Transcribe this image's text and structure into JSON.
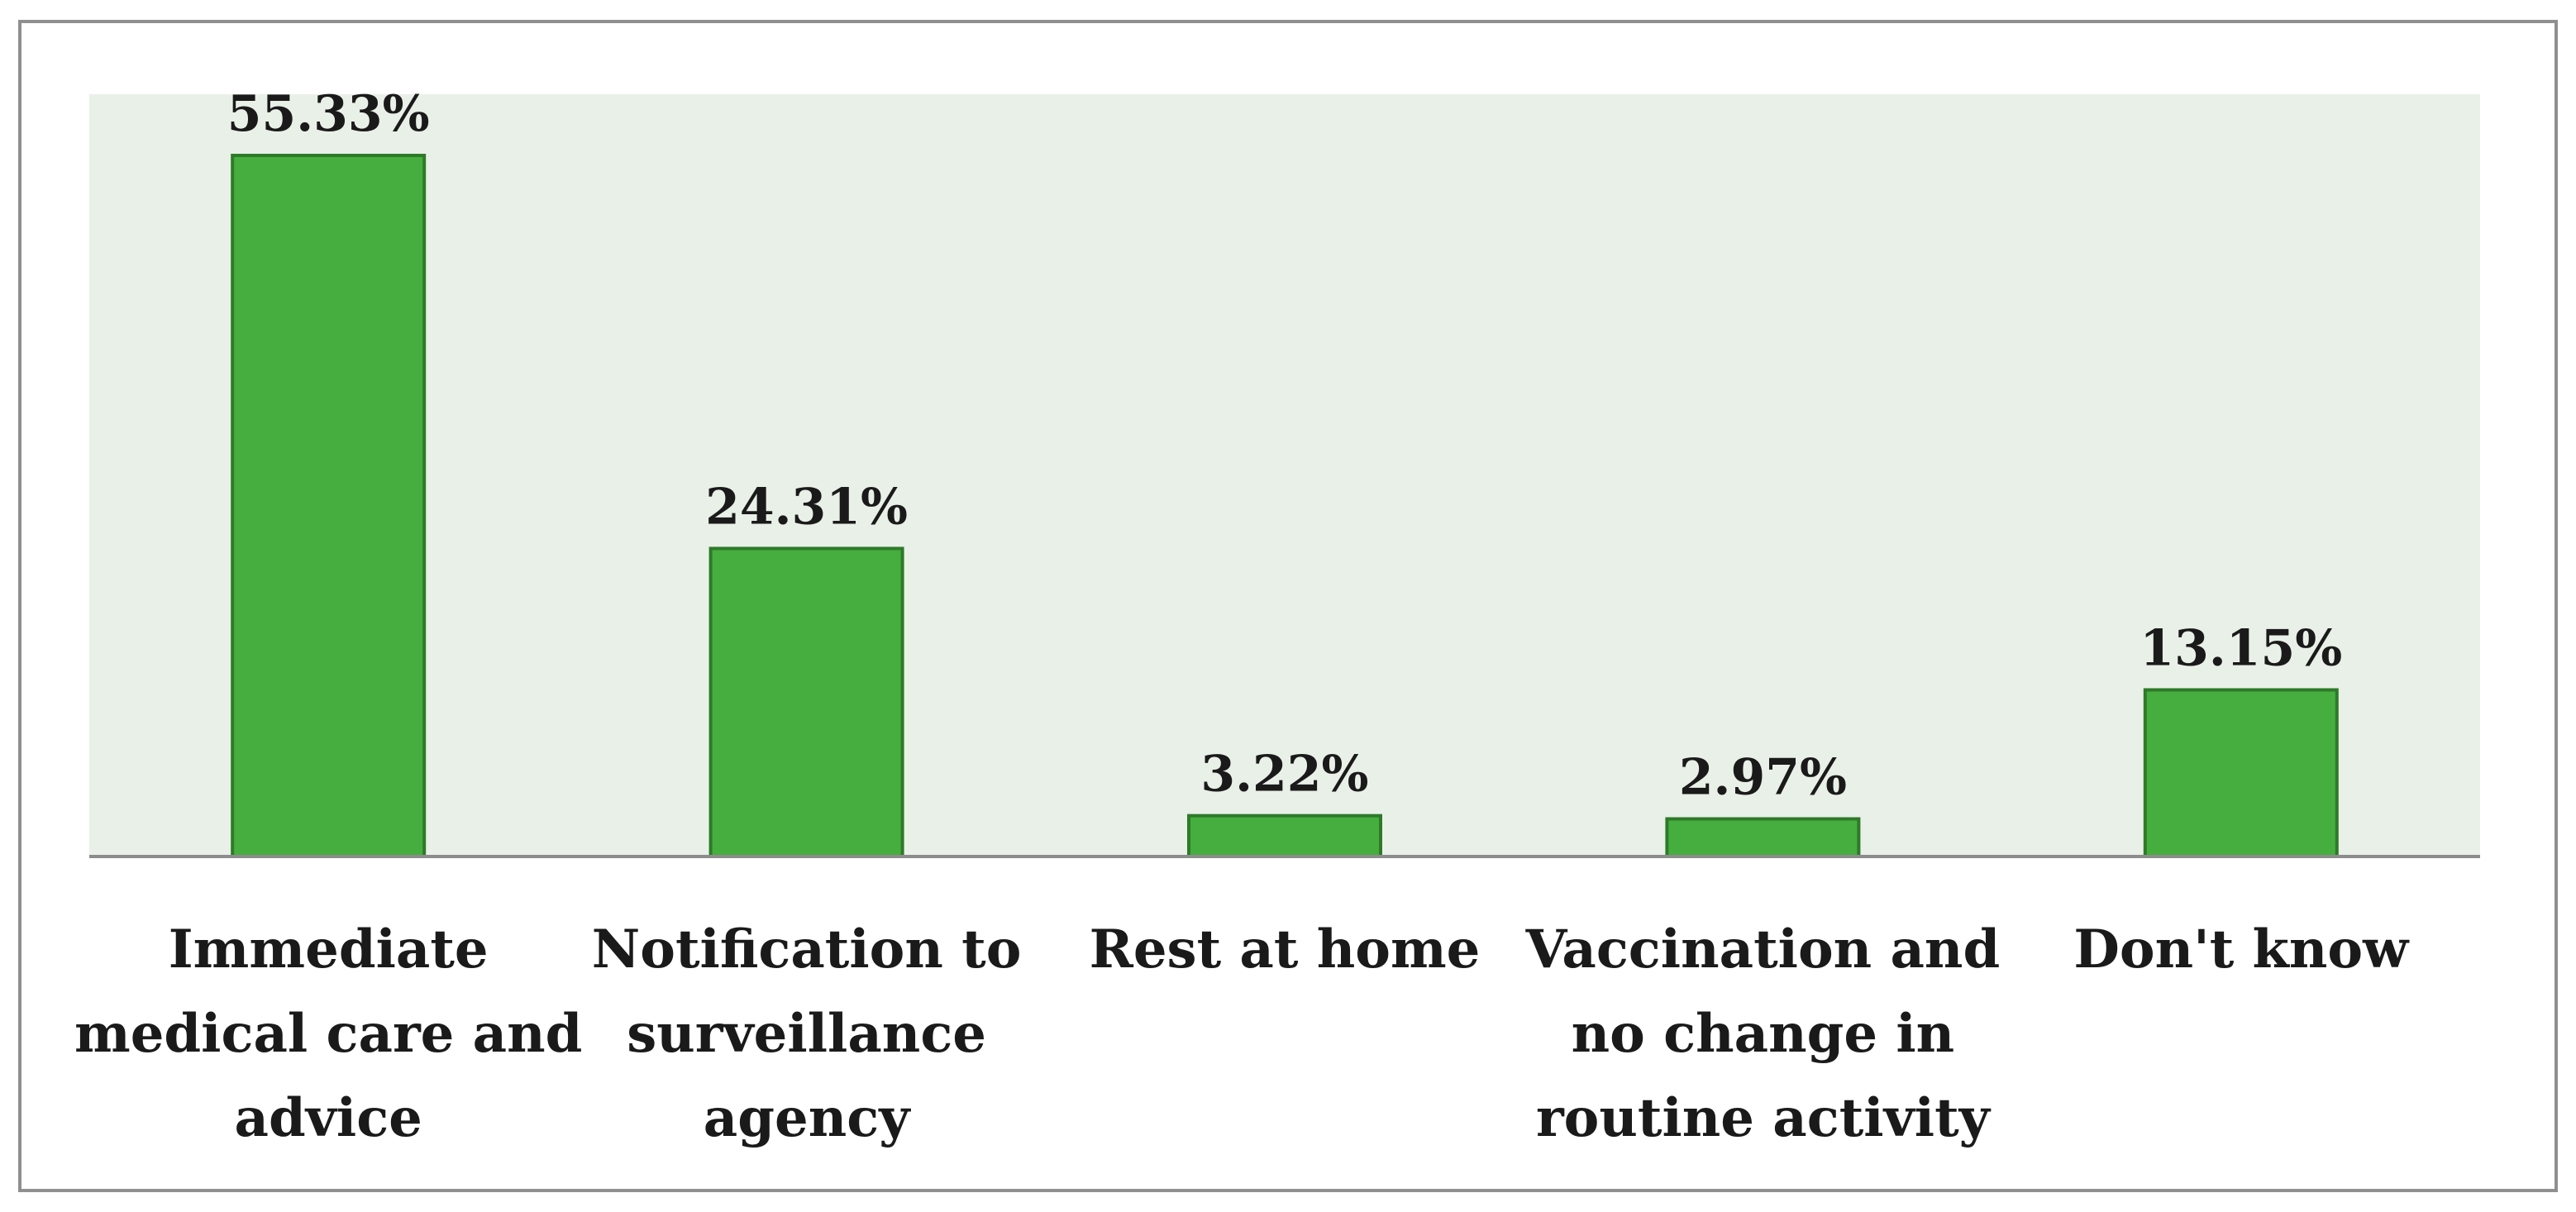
{
  "chart_data": {
    "type": "bar",
    "title": "",
    "xlabel": "",
    "ylabel": "",
    "ylim": [
      0,
      60
    ],
    "grid": false,
    "legend": "none",
    "categories": [
      [
        "Immediate",
        "medical care and",
        "advice"
      ],
      [
        "Notification to",
        "surveillance",
        "agency"
      ],
      [
        "Rest at home"
      ],
      [
        "Vaccination and",
        "no change in",
        "routine activity"
      ],
      [
        "Don't know"
      ]
    ],
    "values": [
      55.33,
      24.31,
      3.22,
      2.97,
      13.15
    ],
    "data_labels": [
      "55.33%",
      "24.31%",
      "3.22%",
      "2.97%",
      "13.15%"
    ],
    "colors": {
      "bar_fill": "#46ae3e",
      "bar_stroke": "#2e7a29",
      "plot_background": "#e9f0e8",
      "axis_line": "#8c8c8c",
      "frame_border": "#8f8f8f"
    }
  }
}
